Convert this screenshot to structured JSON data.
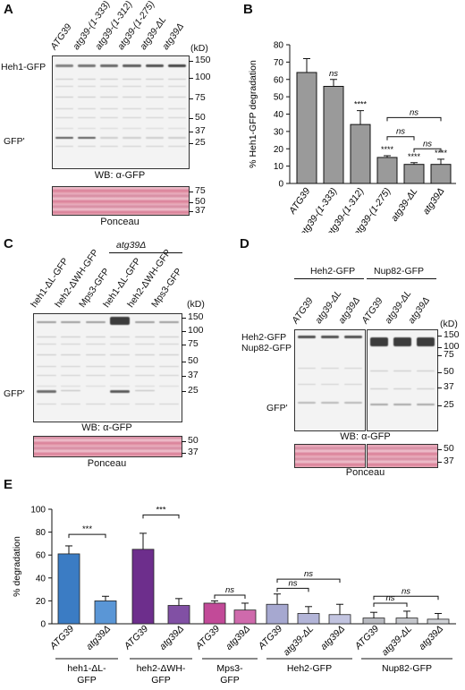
{
  "panels": {
    "A": {
      "letter": "A",
      "lanes": [
        "ATG39",
        "atg39-(1-333)",
        "atg39-(1-312)",
        "atg39-(1-275)",
        "atg39-ΔL",
        "atg39Δ"
      ],
      "kd_label": "(kD)",
      "mw_main": [
        "150",
        "100",
        "75",
        "50",
        "37",
        "25"
      ],
      "mw_ponceau": [
        "75",
        "50",
        "37"
      ],
      "band_labels": [
        "Heh1-GFP",
        "GFP'"
      ],
      "wb_label": "WB: α-GFP",
      "ponceau_label": "Ponceau"
    },
    "B": {
      "letter": "B",
      "ylabel": "% Heh1-GFP degradation",
      "yticks": [
        "0",
        "10",
        "20",
        "30",
        "40",
        "50",
        "60",
        "70",
        "80"
      ]
    },
    "C": {
      "letter": "C",
      "group_label": "atg39Δ",
      "lanes": [
        "heh1-ΔL-GFP",
        "heh2-ΔWH-GFP",
        "Mps3-GFP",
        "heh1-ΔL-GFP",
        "heh2-ΔWH-GFP",
        "Mps3-GFP"
      ],
      "kd_label": "(kD)",
      "mw_main": [
        "150",
        "100",
        "75",
        "50",
        "37",
        "25"
      ],
      "mw_ponceau": [
        "50",
        "37"
      ],
      "band_labels": [
        "GFP'"
      ],
      "wb_label": "WB: α-GFP",
      "ponceau_label": "Ponceau"
    },
    "D": {
      "letter": "D",
      "group_labels": [
        "Heh2-GFP",
        "Nup82-GFP"
      ],
      "lanes": [
        "ATG39",
        "atg39-ΔL",
        "atg39Δ",
        "ATG39",
        "atg39-ΔL",
        "atg39Δ"
      ],
      "kd_label": "(kD)",
      "mw_main": [
        "150",
        "100",
        "75",
        "50",
        "37",
        "25"
      ],
      "mw_ponceau": [
        "50",
        "37"
      ],
      "band_labels": [
        "Heh2-GFP",
        "Nup82-GFP",
        "GFP'"
      ],
      "wb_label": "WB: α-GFP",
      "ponceau_label": "Ponceau"
    },
    "E": {
      "letter": "E",
      "ylabel": "% degradation",
      "yticks": [
        "0",
        "20",
        "40",
        "60",
        "80",
        "100"
      ],
      "groups": [
        "heh1-ΔL-\nGFP",
        "heh2-ΔWH-\nGFP",
        "Mps3-\nGFP",
        "Heh2-GFP",
        "Nup82-GFP"
      ]
    }
  },
  "chart_data": [
    {
      "type": "bar",
      "panel": "B",
      "categories": [
        "ATG39",
        "atg39-(1-333)",
        "atg39-(1-312)",
        "atg39-(1-275)",
        "atg39-ΔL",
        "atg39Δ"
      ],
      "values": [
        64,
        56,
        34,
        15,
        11,
        11
      ],
      "errors": [
        8,
        4,
        8,
        1,
        1,
        3
      ],
      "annotations": [
        "",
        "ns",
        "****",
        "****",
        "****",
        "****"
      ],
      "brackets": [
        {
          "from": 3,
          "to": 5,
          "label": "ns"
        },
        {
          "from": 3,
          "to": 4,
          "label": "ns"
        },
        {
          "from": 4,
          "to": 5,
          "label": "ns"
        }
      ],
      "ylabel": "% Heh1-GFP degradation",
      "ylim": [
        0,
        80
      ],
      "color": "#9a9a9a"
    },
    {
      "type": "bar",
      "panel": "E",
      "categories": [
        "ATG39",
        "atg39Δ",
        "ATG39",
        "atg39Δ",
        "ATG39",
        "atg39Δ",
        "ATG39",
        "atg39-ΔL",
        "atg39Δ",
        "ATG39",
        "atg39-ΔL",
        "atg39Δ"
      ],
      "values": [
        61,
        20,
        65,
        16,
        18,
        12,
        17,
        9,
        8,
        5,
        5,
        4
      ],
      "errors": [
        7,
        4,
        14,
        6,
        2,
        6,
        9,
        6,
        9,
        5,
        6,
        5
      ],
      "colors": [
        "#3b7cc4",
        "#5a96d6",
        "#6d2e8c",
        "#8150a4",
        "#c24a98",
        "#cf6aac",
        "#a6a8d0",
        "#b3b5d8",
        "#c2c4e0",
        "#b8bac0",
        "#c5c7cc",
        "#d0d2d6"
      ],
      "brackets": [
        {
          "from": 0,
          "to": 1,
          "label": "***"
        },
        {
          "from": 2,
          "to": 3,
          "label": "***"
        },
        {
          "from": 4,
          "to": 5,
          "label": "ns"
        },
        {
          "from": 6,
          "to": 7,
          "label": "ns"
        },
        {
          "from": 6,
          "to": 8,
          "label": "ns"
        },
        {
          "from": 9,
          "to": 10,
          "label": "ns"
        },
        {
          "from": 9,
          "to": 11,
          "label": "ns"
        }
      ],
      "ylabel": "% degradation",
      "ylim": [
        0,
        100
      ]
    }
  ]
}
